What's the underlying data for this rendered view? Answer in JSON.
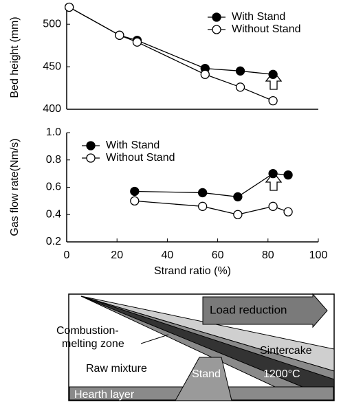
{
  "chart_data": [
    {
      "type": "line",
      "y_label": "Bed height (mm)",
      "x": [
        1,
        21,
        28,
        55,
        69,
        82
      ],
      "xlim": [
        0,
        100
      ],
      "ylim": [
        400,
        522
      ],
      "yticks": [
        400,
        450,
        500
      ],
      "legend": "upper right",
      "series": [
        {
          "name": "With Stand",
          "color": "#000000",
          "values": [
            520,
            487,
            481,
            448,
            445,
            441
          ]
        },
        {
          "name": "Without Stand",
          "color": "#ffffff",
          "values": [
            520,
            487,
            479,
            441,
            426,
            410
          ]
        }
      ]
    },
    {
      "type": "line",
      "y_label": "Gas flow rate(Nm/s)",
      "x_label": "Strand ratio (%)",
      "x": [
        27,
        54,
        68,
        82,
        88
      ],
      "xlim": [
        0,
        100
      ],
      "xticks": [
        0,
        20,
        40,
        60,
        80,
        100
      ],
      "ylim": [
        0.2,
        1.0
      ],
      "yticks": [
        0.2,
        0.4,
        0.6,
        0.8,
        {
          "value": 1.0,
          "label": "1.0"
        }
      ],
      "legend": "upper left",
      "series": [
        {
          "name": "With Stand",
          "color": "#000000",
          "values": [
            0.57,
            0.56,
            0.53,
            0.7,
            0.69
          ]
        },
        {
          "name": "Without Stand",
          "color": "#ffffff",
          "values": [
            0.5,
            0.46,
            0.4,
            0.46,
            0.42
          ]
        }
      ]
    }
  ],
  "diagram": {
    "arrow_label": "Load reduction",
    "zone_line1": "Combustion-",
    "zone_line2": "melting zone",
    "raw": "Raw mixture",
    "sinter": "Sintercake",
    "stand": "Stand",
    "temperature": "1200°C",
    "hearth": "Hearth layer"
  }
}
